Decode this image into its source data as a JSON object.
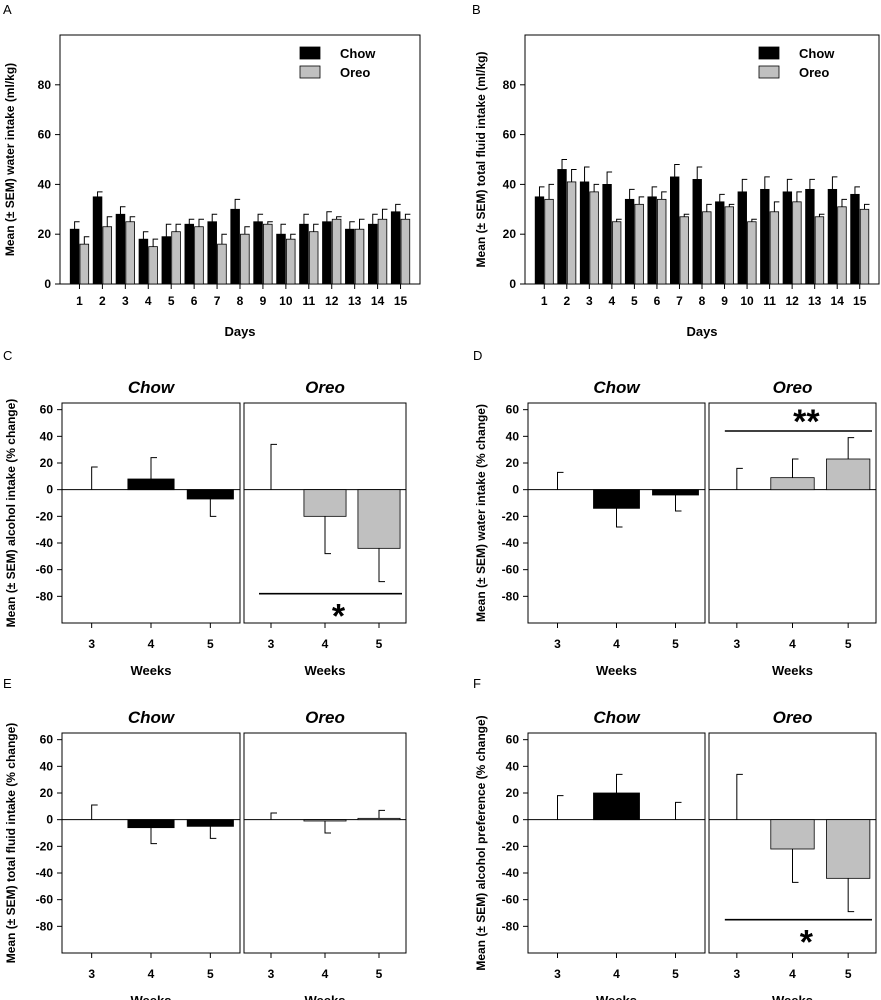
{
  "colors": {
    "chow": "#000000",
    "oreo": "#c0c0c0",
    "axis": "#000000",
    "background": "#ffffff"
  },
  "chart_data": [
    {
      "panel": "A",
      "type": "bar",
      "xlabel": "Days",
      "ylabel": "Mean (± SEM) water intake (ml/kg)",
      "ylim": [
        0,
        100
      ],
      "yticks": [
        0,
        20,
        40,
        60,
        80
      ],
      "categories": [
        "1",
        "2",
        "3",
        "4",
        "5",
        "6",
        "7",
        "8",
        "9",
        "10",
        "11",
        "12",
        "13",
        "14",
        "15"
      ],
      "legend": {
        "position": "top-right",
        "entries": [
          "Chow",
          "Oreo"
        ]
      },
      "series": [
        {
          "name": "Chow",
          "values": [
            22,
            35,
            28,
            18,
            19,
            24,
            25,
            30,
            25,
            20,
            24,
            25,
            22,
            24,
            29
          ],
          "errors": [
            3,
            2,
            3,
            3,
            5,
            2,
            3,
            4,
            3,
            4,
            4,
            4,
            3,
            4,
            3
          ]
        },
        {
          "name": "Oreo",
          "values": [
            16,
            23,
            25,
            15,
            21,
            23,
            16,
            20,
            24,
            18,
            21,
            26,
            22,
            26,
            26
          ],
          "errors": [
            3,
            4,
            2,
            3,
            3,
            3,
            4,
            3,
            1,
            2,
            3,
            1,
            4,
            4,
            2
          ]
        }
      ]
    },
    {
      "panel": "B",
      "type": "bar",
      "xlabel": "Days",
      "ylabel": "Mean (± SEM) total fluid intake (ml/kg)",
      "ylim": [
        0,
        100
      ],
      "yticks": [
        0,
        20,
        40,
        60,
        80
      ],
      "categories": [
        "1",
        "2",
        "3",
        "4",
        "5",
        "6",
        "7",
        "8",
        "9",
        "10",
        "11",
        "12",
        "13",
        "14",
        "15"
      ],
      "legend": {
        "position": "top-right",
        "entries": [
          "Chow",
          "Oreo"
        ]
      },
      "series": [
        {
          "name": "Chow",
          "values": [
            35,
            46,
            41,
            40,
            34,
            35,
            43,
            42,
            33,
            37,
            38,
            37,
            38,
            38,
            36
          ],
          "errors": [
            4,
            4,
            6,
            5,
            4,
            4,
            5,
            5,
            3,
            5,
            5,
            5,
            4,
            5,
            3
          ]
        },
        {
          "name": "Oreo",
          "values": [
            34,
            41,
            37,
            25,
            32,
            34,
            27,
            29,
            31,
            25,
            29,
            33,
            27,
            31,
            30
          ],
          "errors": [
            6,
            5,
            3,
            1,
            3,
            3,
            1,
            3,
            1,
            1,
            4,
            4,
            1,
            3,
            2
          ]
        }
      ]
    },
    {
      "panel": "C",
      "type": "bar",
      "ylabel": "Mean (± SEM) alcohol intake (% change)",
      "xlabel_left": "Weeks",
      "xlabel_right": "Weeks",
      "ylim": [
        -100,
        65
      ],
      "yticks": [
        60,
        40,
        20,
        0,
        -20,
        -40,
        -60,
        -80
      ],
      "groups": [
        {
          "name": "Chow",
          "categories": [
            "3",
            "4",
            "5"
          ],
          "values": [
            0,
            8,
            -7
          ],
          "errors": [
            17,
            16,
            13
          ]
        },
        {
          "name": "Oreo",
          "categories": [
            "3",
            "4",
            "5"
          ],
          "values": [
            0,
            -20,
            -44
          ],
          "errors": [
            34,
            28,
            25
          ]
        }
      ],
      "significance": {
        "group": "Oreo",
        "from": "3",
        "to": "5",
        "value": -78,
        "label": "*"
      }
    },
    {
      "panel": "D",
      "type": "bar",
      "ylabel": "Mean (± SEM) water intake (% change)",
      "xlabel_left": "Weeks",
      "xlabel_right": "Weeks",
      "ylim": [
        -100,
        65
      ],
      "yticks": [
        60,
        40,
        20,
        0,
        -20,
        -40,
        -60,
        -80
      ],
      "groups": [
        {
          "name": "Chow",
          "categories": [
            "3",
            "4",
            "5"
          ],
          "values": [
            0,
            -14,
            -4
          ],
          "errors": [
            13,
            14,
            12
          ]
        },
        {
          "name": "Oreo",
          "categories": [
            "3",
            "4",
            "5"
          ],
          "values": [
            0,
            9,
            23
          ],
          "errors": [
            16,
            14,
            16
          ]
        }
      ],
      "significance": {
        "group": "Oreo",
        "from": "3",
        "to": "5",
        "value": 44,
        "label": "**"
      }
    },
    {
      "panel": "E",
      "type": "bar",
      "ylabel": "Mean (± SEM) total fluid intake  (% change)",
      "xlabel_left": "Weeks",
      "xlabel_right": "Weeks",
      "ylim": [
        -100,
        65
      ],
      "yticks": [
        60,
        40,
        20,
        0,
        -20,
        -40,
        -60,
        -80
      ],
      "groups": [
        {
          "name": "Chow",
          "categories": [
            "3",
            "4",
            "5"
          ],
          "values": [
            0,
            -6,
            -5
          ],
          "errors": [
            11,
            12,
            9
          ]
        },
        {
          "name": "Oreo",
          "categories": [
            "3",
            "4",
            "5"
          ],
          "values": [
            0,
            -1,
            1
          ],
          "errors": [
            5,
            9,
            6
          ]
        }
      ]
    },
    {
      "panel": "F",
      "type": "bar",
      "ylabel": "Mean (± SEM) alcohol preference (% change)",
      "xlabel_left": "Weeks",
      "xlabel_right": "Weeks",
      "ylim": [
        -100,
        65
      ],
      "yticks": [
        60,
        40,
        20,
        0,
        -20,
        -40,
        -60,
        -80
      ],
      "groups": [
        {
          "name": "Chow",
          "categories": [
            "3",
            "4",
            "5"
          ],
          "values": [
            0,
            20,
            0
          ],
          "errors": [
            18,
            14,
            13
          ]
        },
        {
          "name": "Oreo",
          "categories": [
            "3",
            "4",
            "5"
          ],
          "values": [
            0,
            -22,
            -44
          ],
          "errors": [
            34,
            25,
            25
          ]
        }
      ],
      "significance": {
        "group": "Oreo",
        "from": "3",
        "to": "5",
        "value": -75,
        "label": "*"
      }
    }
  ]
}
